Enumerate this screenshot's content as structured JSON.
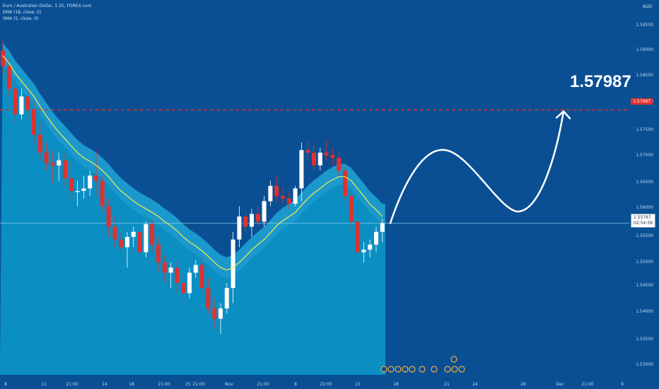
{
  "header": {
    "title": "Euro / Australian Dollar, 1 25, FOREX.com",
    "ema": "EMA (18, close, 0)",
    "sma": "SMA (5, close, 0)"
  },
  "currency": "AUD",
  "colors": {
    "background": "#0a4f94",
    "area": "#0b8fc3",
    "band": "#1ea6d6",
    "bull": "#ffffff",
    "bear": "#e0312f",
    "ema": "#f2ef4c",
    "target_line": "#e0312f",
    "price_line": "#8ecbef"
  },
  "target": {
    "label": "1.57987",
    "badge": "1.57987",
    "price": 1.57987
  },
  "price_badge": {
    "price": "1.55767",
    "timer": "02:54:59"
  },
  "y_ticks": [
    "1.59550",
    "1.59000",
    "1.58550",
    "1.58000",
    "1.57500",
    "1.57000",
    "1.56500",
    "1.56000",
    "1.55500",
    "1.55000",
    "1.54500",
    "1.54000",
    "1.53500",
    "1.53000"
  ],
  "x_ticks": [
    "8",
    "11",
    "21:00",
    "14",
    "18",
    "21:00",
    "25",
    "21:00",
    "Nov",
    "21:00",
    "8",
    "22:00",
    "15",
    "18",
    "21",
    "24",
    "28",
    "Dec",
    "21:00",
    "9"
  ],
  "chart_data": {
    "type": "candlestick",
    "ylim": [
      1.528,
      1.6
    ],
    "current_price": 1.55767,
    "target_price": 1.57987,
    "candles": [
      {
        "o": 1.5915,
        "h": 1.5935,
        "l": 1.587,
        "c": 1.5885
      },
      {
        "o": 1.5885,
        "h": 1.59,
        "l": 1.5825,
        "c": 1.584
      },
      {
        "o": 1.584,
        "h": 1.586,
        "l": 1.577,
        "c": 1.579
      },
      {
        "o": 1.579,
        "h": 1.584,
        "l": 1.578,
        "c": 1.5825
      },
      {
        "o": 1.5825,
        "h": 1.584,
        "l": 1.578,
        "c": 1.58
      },
      {
        "o": 1.58,
        "h": 1.582,
        "l": 1.573,
        "c": 1.575
      },
      {
        "o": 1.575,
        "h": 1.5775,
        "l": 1.57,
        "c": 1.5715
      },
      {
        "o": 1.5715,
        "h": 1.5735,
        "l": 1.568,
        "c": 1.5695
      },
      {
        "o": 1.5695,
        "h": 1.572,
        "l": 1.5655,
        "c": 1.569
      },
      {
        "o": 1.569,
        "h": 1.5715,
        "l": 1.566,
        "c": 1.57
      },
      {
        "o": 1.57,
        "h": 1.5715,
        "l": 1.565,
        "c": 1.5665
      },
      {
        "o": 1.5665,
        "h": 1.57,
        "l": 1.562,
        "c": 1.564
      },
      {
        "o": 1.564,
        "h": 1.566,
        "l": 1.561,
        "c": 1.564
      },
      {
        "o": 1.564,
        "h": 1.567,
        "l": 1.5625,
        "c": 1.5645
      },
      {
        "o": 1.5645,
        "h": 1.568,
        "l": 1.563,
        "c": 1.567
      },
      {
        "o": 1.567,
        "h": 1.572,
        "l": 1.563,
        "c": 1.566
      },
      {
        "o": 1.566,
        "h": 1.567,
        "l": 1.56,
        "c": 1.561
      },
      {
        "o": 1.561,
        "h": 1.5625,
        "l": 1.555,
        "c": 1.557
      },
      {
        "o": 1.557,
        "h": 1.559,
        "l": 1.553,
        "c": 1.5545
      },
      {
        "o": 1.5545,
        "h": 1.556,
        "l": 1.552,
        "c": 1.553
      },
      {
        "o": 1.553,
        "h": 1.556,
        "l": 1.549,
        "c": 1.555
      },
      {
        "o": 1.555,
        "h": 1.557,
        "l": 1.553,
        "c": 1.556
      },
      {
        "o": 1.556,
        "h": 1.558,
        "l": 1.551,
        "c": 1.552
      },
      {
        "o": 1.552,
        "h": 1.558,
        "l": 1.551,
        "c": 1.5575
      },
      {
        "o": 1.5575,
        "h": 1.5585,
        "l": 1.552,
        "c": 1.5535
      },
      {
        "o": 1.5535,
        "h": 1.555,
        "l": 1.548,
        "c": 1.55
      },
      {
        "o": 1.55,
        "h": 1.5515,
        "l": 1.546,
        "c": 1.548
      },
      {
        "o": 1.548,
        "h": 1.55,
        "l": 1.545,
        "c": 1.549
      },
      {
        "o": 1.549,
        "h": 1.5505,
        "l": 1.544,
        "c": 1.546
      },
      {
        "o": 1.546,
        "h": 1.548,
        "l": 1.542,
        "c": 1.544
      },
      {
        "o": 1.544,
        "h": 1.549,
        "l": 1.543,
        "c": 1.548
      },
      {
        "o": 1.548,
        "h": 1.5505,
        "l": 1.547,
        "c": 1.5495
      },
      {
        "o": 1.5495,
        "h": 1.551,
        "l": 1.544,
        "c": 1.545
      },
      {
        "o": 1.545,
        "h": 1.547,
        "l": 1.54,
        "c": 1.541
      },
      {
        "o": 1.541,
        "h": 1.543,
        "l": 1.537,
        "c": 1.539
      },
      {
        "o": 1.539,
        "h": 1.542,
        "l": 1.536,
        "c": 1.541
      },
      {
        "o": 1.541,
        "h": 1.546,
        "l": 1.54,
        "c": 1.545
      },
      {
        "o": 1.545,
        "h": 1.556,
        "l": 1.542,
        "c": 1.5545
      },
      {
        "o": 1.5545,
        "h": 1.561,
        "l": 1.553,
        "c": 1.559
      },
      {
        "o": 1.559,
        "h": 1.56,
        "l": 1.556,
        "c": 1.557
      },
      {
        "o": 1.557,
        "h": 1.5605,
        "l": 1.555,
        "c": 1.5595
      },
      {
        "o": 1.5595,
        "h": 1.561,
        "l": 1.557,
        "c": 1.558
      },
      {
        "o": 1.558,
        "h": 1.563,
        "l": 1.557,
        "c": 1.562
      },
      {
        "o": 1.562,
        "h": 1.566,
        "l": 1.561,
        "c": 1.565
      },
      {
        "o": 1.565,
        "h": 1.567,
        "l": 1.562,
        "c": 1.563
      },
      {
        "o": 1.563,
        "h": 1.5645,
        "l": 1.5615,
        "c": 1.5625
      },
      {
        "o": 1.5625,
        "h": 1.564,
        "l": 1.5605,
        "c": 1.5615
      },
      {
        "o": 1.5615,
        "h": 1.565,
        "l": 1.561,
        "c": 1.5645
      },
      {
        "o": 1.5645,
        "h": 1.5735,
        "l": 1.562,
        "c": 1.572
      },
      {
        "o": 1.572,
        "h": 1.574,
        "l": 1.57,
        "c": 1.5715
      },
      {
        "o": 1.5715,
        "h": 1.573,
        "l": 1.568,
        "c": 1.569
      },
      {
        "o": 1.569,
        "h": 1.5725,
        "l": 1.568,
        "c": 1.5715
      },
      {
        "o": 1.5715,
        "h": 1.574,
        "l": 1.57,
        "c": 1.571
      },
      {
        "o": 1.571,
        "h": 1.5725,
        "l": 1.569,
        "c": 1.5705
      },
      {
        "o": 1.5705,
        "h": 1.5715,
        "l": 1.567,
        "c": 1.568
      },
      {
        "o": 1.568,
        "h": 1.569,
        "l": 1.562,
        "c": 1.563
      },
      {
        "o": 1.563,
        "h": 1.564,
        "l": 1.556,
        "c": 1.558
      },
      {
        "o": 1.558,
        "h": 1.56,
        "l": 1.551,
        "c": 1.552
      },
      {
        "o": 1.552,
        "h": 1.554,
        "l": 1.55,
        "c": 1.5525
      },
      {
        "o": 1.5525,
        "h": 1.5545,
        "l": 1.551,
        "c": 1.5535
      },
      {
        "o": 1.5535,
        "h": 1.557,
        "l": 1.552,
        "c": 1.556
      },
      {
        "o": 1.556,
        "h": 1.5585,
        "l": 1.554,
        "c": 1.5577
      }
    ],
    "ema": [
      1.5905,
      1.589,
      1.587,
      1.5855,
      1.584,
      1.5825,
      1.5805,
      1.5787,
      1.577,
      1.5755,
      1.5742,
      1.5728,
      1.5715,
      1.5705,
      1.5698,
      1.569,
      1.568,
      1.5668,
      1.5653,
      1.564,
      1.563,
      1.562,
      1.5612,
      1.5605,
      1.5598,
      1.559,
      1.558,
      1.5572,
      1.5562,
      1.555,
      1.554,
      1.5532,
      1.5523,
      1.5512,
      1.55,
      1.549,
      1.5485,
      1.549,
      1.55,
      1.5512,
      1.5525,
      1.5535,
      1.5545,
      1.5558,
      1.5572,
      1.5582,
      1.559,
      1.5598,
      1.5612,
      1.5625,
      1.5636,
      1.5645,
      1.5655,
      1.5662,
      1.5668,
      1.5668,
      1.566,
      1.5645,
      1.563,
      1.5614,
      1.5603,
      1.559
    ],
    "forecast": {
      "start": 1.5577,
      "peak": 1.572,
      "trough": 1.56,
      "target": 1.57987
    }
  }
}
